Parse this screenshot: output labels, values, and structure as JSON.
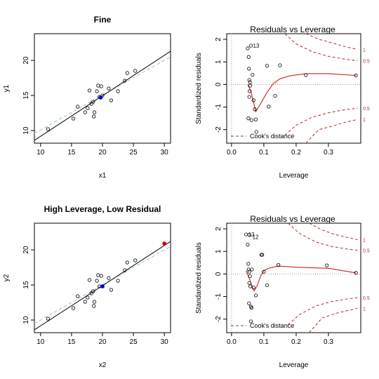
{
  "chart_data": [
    {
      "type": "scatter",
      "title": "Fine",
      "xlabel": "x1",
      "ylabel": "y1",
      "xlim": [
        9,
        31
      ],
      "ylim": [
        8.2,
        23.8
      ],
      "xticks": [
        10,
        15,
        20,
        25,
        30
      ],
      "yticks": [
        10,
        15,
        20
      ],
      "points": [
        {
          "x": 11.2,
          "y": 10.2
        },
        {
          "x": 15.3,
          "y": 11.7
        },
        {
          "x": 16.0,
          "y": 13.4
        },
        {
          "x": 17.2,
          "y": 12.6
        },
        {
          "x": 17.6,
          "y": 13.2
        },
        {
          "x": 17.9,
          "y": 15.7
        },
        {
          "x": 18.2,
          "y": 13.8
        },
        {
          "x": 18.5,
          "y": 14.1
        },
        {
          "x": 18.6,
          "y": 12.0
        },
        {
          "x": 18.7,
          "y": 12.6
        },
        {
          "x": 19.1,
          "y": 15.6
        },
        {
          "x": 19.3,
          "y": 16.4
        },
        {
          "x": 19.8,
          "y": 16.3
        },
        {
          "x": 19.5,
          "y": 14.8
        },
        {
          "x": 20.0,
          "y": 15.0
        },
        {
          "x": 21.0,
          "y": 16.0
        },
        {
          "x": 21.4,
          "y": 14.3
        },
        {
          "x": 22.5,
          "y": 15.6
        },
        {
          "x": 23.6,
          "y": 17.1
        },
        {
          "x": 24.0,
          "y": 18.2
        },
        {
          "x": 25.3,
          "y": 18.5
        }
      ],
      "highlight_point": {
        "x": 19.7,
        "y": 14.7,
        "color": "#0000cd"
      },
      "fit_line": {
        "x": [
          9,
          31
        ],
        "y": [
          8.6,
          21.3
        ],
        "color": "#000000"
      },
      "reference_line": {
        "x": [
          9,
          31
        ],
        "y": [
          9.6,
          20.5
        ],
        "color": "#a9c7e8"
      }
    },
    {
      "type": "scatter",
      "title": "Residuals vs Leverage",
      "xlabel": "Leverage",
      "ylabel": "Standardized residuals",
      "xlim": [
        -0.015,
        0.4
      ],
      "ylim": [
        -2.6,
        2.25
      ],
      "xticks": [
        0.0,
        0.1,
        0.2,
        0.3
      ],
      "yticks": [
        -2,
        -1,
        0,
        1,
        2
      ],
      "points": [
        {
          "x": 0.05,
          "y": 1.6
        },
        {
          "x": 0.06,
          "y": 1.72
        },
        {
          "x": 0.053,
          "y": 1.22
        },
        {
          "x": 0.054,
          "y": 0.7
        },
        {
          "x": 0.055,
          "y": 0.2
        },
        {
          "x": 0.057,
          "y": 0.1
        },
        {
          "x": 0.058,
          "y": -0.05
        },
        {
          "x": 0.056,
          "y": -0.3
        },
        {
          "x": 0.055,
          "y": -0.55
        },
        {
          "x": 0.052,
          "y": -1.5
        },
        {
          "x": 0.062,
          "y": -1.58
        },
        {
          "x": 0.065,
          "y": 0.43
        },
        {
          "x": 0.068,
          "y": -0.7
        },
        {
          "x": 0.072,
          "y": -1.1
        },
        {
          "x": 0.075,
          "y": -1.55
        },
        {
          "x": 0.077,
          "y": -2.1
        },
        {
          "x": 0.11,
          "y": 0.83
        },
        {
          "x": 0.115,
          "y": -0.98
        },
        {
          "x": 0.135,
          "y": -0.5
        },
        {
          "x": 0.15,
          "y": 0.85
        },
        {
          "x": 0.23,
          "y": 0.42
        },
        {
          "x": 0.385,
          "y": 0.4
        }
      ],
      "point_labels": [
        {
          "x": 0.06,
          "y": 1.72,
          "text": "13"
        }
      ],
      "smooth_line": {
        "x": [
          0.05,
          0.06,
          0.07,
          0.075,
          0.09,
          0.11,
          0.13,
          0.15,
          0.18,
          0.23,
          0.3,
          0.385
        ],
        "y": [
          0.0,
          -0.3,
          -0.9,
          -1.2,
          -0.85,
          -0.35,
          0.05,
          0.25,
          0.38,
          0.48,
          0.48,
          0.4
        ],
        "color": "#cc2222"
      },
      "cooks_distance": {
        "levels": [
          "1",
          "0.5",
          "0.5",
          "1"
        ],
        "upper_1": {
          "x": [
            0.23,
            0.27,
            0.31,
            0.35,
            0.39
          ],
          "y": [
            2.25,
            2.0,
            1.85,
            1.68,
            1.55
          ]
        },
        "upper_05": {
          "x": [
            0.165,
            0.2,
            0.25,
            0.3,
            0.35,
            0.39
          ],
          "y": [
            2.25,
            1.8,
            1.45,
            1.25,
            1.12,
            1.05
          ]
        },
        "lower_05": {
          "x": [
            0.165,
            0.2,
            0.25,
            0.3,
            0.35,
            0.39
          ],
          "y": [
            -2.25,
            -1.8,
            -1.45,
            -1.25,
            -1.12,
            -1.05
          ]
        },
        "lower_1": {
          "x": [
            0.23,
            0.27,
            0.31,
            0.35,
            0.39
          ],
          "y": [
            -2.6,
            -2.0,
            -1.85,
            -1.68,
            -1.55
          ]
        },
        "color": "#b03030"
      },
      "legend": "Cook's distance",
      "legend_position": "bottom-left"
    },
    {
      "type": "scatter",
      "title": "High Leverage, Low Residual",
      "xlabel": "x2",
      "ylabel": "y2",
      "xlim": [
        9,
        31
      ],
      "ylim": [
        8.2,
        23.8
      ],
      "xticks": [
        10,
        15,
        20,
        25,
        30
      ],
      "yticks": [
        10,
        15,
        20
      ],
      "points": [
        {
          "x": 11.2,
          "y": 10.2
        },
        {
          "x": 15.3,
          "y": 11.7
        },
        {
          "x": 16.0,
          "y": 13.4
        },
        {
          "x": 17.2,
          "y": 12.6
        },
        {
          "x": 17.6,
          "y": 13.2
        },
        {
          "x": 17.9,
          "y": 15.7
        },
        {
          "x": 18.2,
          "y": 13.8
        },
        {
          "x": 18.5,
          "y": 14.1
        },
        {
          "x": 18.6,
          "y": 12.0
        },
        {
          "x": 18.7,
          "y": 12.6
        },
        {
          "x": 19.1,
          "y": 15.6
        },
        {
          "x": 19.3,
          "y": 16.4
        },
        {
          "x": 19.8,
          "y": 16.3
        },
        {
          "x": 19.5,
          "y": 14.8
        },
        {
          "x": 21.0,
          "y": 16.0
        },
        {
          "x": 21.4,
          "y": 14.3
        },
        {
          "x": 22.5,
          "y": 15.6
        },
        {
          "x": 23.6,
          "y": 17.1
        },
        {
          "x": 24.0,
          "y": 18.2
        },
        {
          "x": 25.3,
          "y": 18.5
        }
      ],
      "highlight_point": {
        "x": 20.0,
        "y": 14.8,
        "color": "#0000cd"
      },
      "extra_point": {
        "x": 30.0,
        "y": 20.9,
        "color": "#cc0000"
      },
      "fit_line": {
        "x": [
          9,
          31
        ],
        "y": [
          8.6,
          21.2
        ],
        "color": "#000000"
      },
      "reference_line": {
        "x": [
          9,
          31
        ],
        "y": [
          9.5,
          20.5
        ],
        "color": "#a9c7e8"
      }
    },
    {
      "type": "scatter",
      "title": "Residuals vs Leverage",
      "xlabel": "Leverage",
      "ylabel": "Standardized residuals",
      "xlim": [
        -0.015,
        0.4
      ],
      "ylim": [
        -2.6,
        2.25
      ],
      "xticks": [
        0.0,
        0.1,
        0.2,
        0.3
      ],
      "yticks": [
        -2,
        -1,
        0,
        1,
        2
      ],
      "points": [
        {
          "x": 0.045,
          "y": 1.75
        },
        {
          "x": 0.055,
          "y": 1.73
        },
        {
          "x": 0.05,
          "y": 1.3
        },
        {
          "x": 0.052,
          "y": 0.45
        },
        {
          "x": 0.053,
          "y": 0.2
        },
        {
          "x": 0.055,
          "y": 0.1
        },
        {
          "x": 0.057,
          "y": -0.1
        },
        {
          "x": 0.055,
          "y": -0.4
        },
        {
          "x": 0.058,
          "y": -0.55
        },
        {
          "x": 0.054,
          "y": -1.3
        },
        {
          "x": 0.06,
          "y": -1.45
        },
        {
          "x": 0.062,
          "y": -1.5
        },
        {
          "x": 0.063,
          "y": 0.2
        },
        {
          "x": 0.068,
          "y": -0.6
        },
        {
          "x": 0.075,
          "y": -0.95
        },
        {
          "x": 0.06,
          "y": -2.1
        },
        {
          "x": 0.092,
          "y": 0.85
        },
        {
          "x": 0.095,
          "y": 0.85
        },
        {
          "x": 0.1,
          "y": 0.1
        },
        {
          "x": 0.11,
          "y": -0.5
        },
        {
          "x": 0.145,
          "y": 0.4
        },
        {
          "x": 0.295,
          "y": 0.38
        },
        {
          "x": 0.385,
          "y": 0.05
        }
      ],
      "point_labels": [
        {
          "x": 0.045,
          "y": 1.75,
          "text": "13"
        },
        {
          "x": 0.058,
          "y": 1.64,
          "text": "12"
        }
      ],
      "smooth_line": {
        "x": [
          0.045,
          0.055,
          0.065,
          0.07,
          0.08,
          0.09,
          0.1,
          0.12,
          0.145,
          0.2,
          0.3,
          0.385
        ],
        "y": [
          0.15,
          -0.2,
          -0.6,
          -0.75,
          -0.5,
          -0.1,
          0.15,
          0.28,
          0.35,
          0.3,
          0.25,
          0.05
        ],
        "color": "#cc2222"
      },
      "cooks_distance": {
        "levels": [
          "1",
          "0.5",
          "0.5",
          "1"
        ],
        "upper_1": {
          "x": [
            0.24,
            0.28,
            0.32,
            0.36,
            0.39
          ],
          "y": [
            2.25,
            1.95,
            1.75,
            1.62,
            1.52
          ]
        },
        "upper_05": {
          "x": [
            0.175,
            0.21,
            0.26,
            0.31,
            0.36,
            0.39
          ],
          "y": [
            2.25,
            1.8,
            1.42,
            1.22,
            1.1,
            1.05
          ]
        },
        "lower_05": {
          "x": [
            0.175,
            0.21,
            0.26,
            0.31,
            0.36,
            0.39
          ],
          "y": [
            -2.25,
            -1.8,
            -1.42,
            -1.22,
            -1.1,
            -1.05
          ]
        },
        "lower_1": {
          "x": [
            0.24,
            0.28,
            0.32,
            0.36,
            0.39
          ],
          "y": [
            -2.6,
            -1.95,
            -1.75,
            -1.62,
            -1.52
          ]
        },
        "color": "#b03030"
      },
      "legend": "Cook's distance",
      "legend_position": "bottom-left"
    }
  ]
}
